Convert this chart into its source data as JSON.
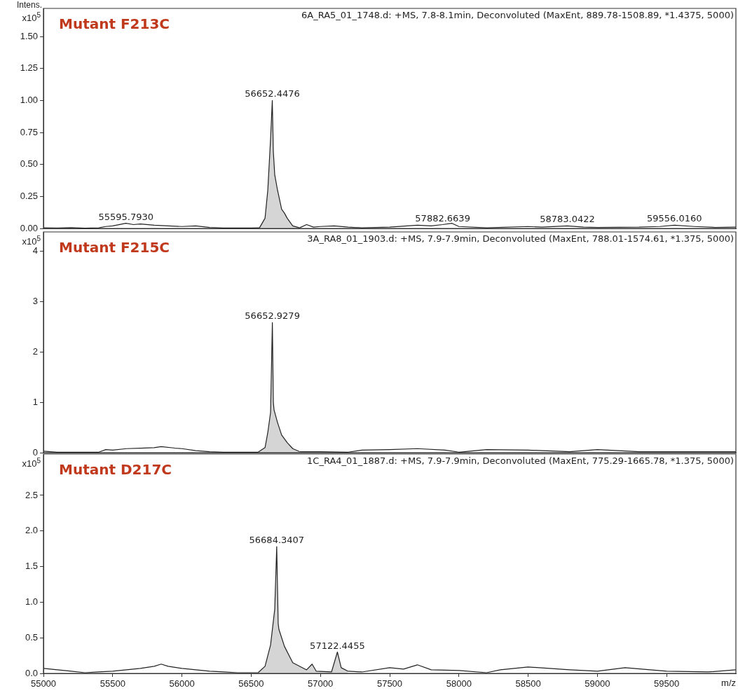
{
  "chart_data": [
    {
      "type": "line",
      "title": "Mutant F213C",
      "subtitle": "6A_RA5_01_1748.d: +MS, 7.8-8.1min, Deconvoluted (MaxEnt, 889.78-1508.89, *1.4375, 5000)",
      "ylabel": "x10$^{5}$",
      "xlim": [
        55000,
        60000
      ],
      "xticks": [
        55000,
        55500,
        56000,
        56500,
        57000,
        57500,
        58000,
        58500,
        59000,
        59500
      ],
      "ylim": [
        0,
        1.72
      ],
      "yticks": [
        {
          "value": 0,
          "label": "0.00"
        },
        {
          "value": 0.25,
          "label": "0.25"
        },
        {
          "value": 0.5,
          "label": "0.50"
        },
        {
          "value": 0.75,
          "label": "0.75"
        },
        {
          "value": 1,
          "label": "1.00"
        },
        {
          "value": 1.25,
          "label": "1.25"
        },
        {
          "value": 1.5,
          "label": "1.50"
        }
      ],
      "tick_labels": "y",
      "annotations": [
        "Intens.",
        {
          "text": "55595.7930",
          "x": 55595.793,
          "y": 0.04
        },
        {
          "text": "56652.4476",
          "x": 56652.4476,
          "y": 1.0
        },
        {
          "text": "57882.6639",
          "x": 57882.6639,
          "y": 0.03
        },
        {
          "text": "58783.0422",
          "x": 58783.0422,
          "y": 0.02
        },
        {
          "text": "59556.0160",
          "x": 59556.016,
          "y": 0.025
        }
      ],
      "series": [
        {
          "type": "line",
          "color": "#222222",
          "x": [
            55000,
            55100,
            55200,
            55300,
            55400,
            55450,
            55500,
            55595.793,
            55650,
            55700,
            55800,
            55900,
            56000,
            56100,
            56200,
            56300,
            56400,
            56500,
            56560
          ],
          "values": [
            0.005,
            0.004,
            0.006,
            0.002,
            0.005,
            0.015,
            0.02,
            0.04,
            0.03,
            0.035,
            0.025,
            0.02,
            0.015,
            0.02,
            0.008,
            0.003,
            0.003,
            0.003,
            0.005
          ]
        },
        {
          "type": "area",
          "color": "#222222",
          "x": [
            56560,
            56600,
            56620,
            56640,
            56652.4476,
            56660,
            56670,
            56690,
            56720,
            56740,
            56760,
            56800,
            56850
          ],
          "values": [
            0.005,
            0.08,
            0.3,
            0.7,
            1.0,
            0.6,
            0.42,
            0.3,
            0.15,
            0.12,
            0.08,
            0.02,
            0.005
          ]
        },
        {
          "type": "line",
          "color": "#222222",
          "x": [
            56850,
            56900,
            56950,
            57000,
            57100,
            57200,
            57300,
            57500,
            57700,
            57800,
            57882.6639,
            57950,
            58000,
            58200,
            58500,
            58600,
            58783.0422,
            58900,
            59000,
            59300,
            59450,
            59556.016,
            59700,
            59850,
            60000
          ],
          "values": [
            0.005,
            0.03,
            0.01,
            0.015,
            0.02,
            0.01,
            0.005,
            0.01,
            0.025,
            0.02,
            0.03,
            0.04,
            0.015,
            0.005,
            0.015,
            0.01,
            0.02,
            0.01,
            0.008,
            0.01,
            0.015,
            0.025,
            0.015,
            0.008,
            0.01
          ]
        }
      ]
    },
    {
      "type": "line",
      "title": "Mutant F215C",
      "subtitle": "3A_RA8_01_1903.d: +MS, 7.9-7.9min, Deconvoluted (MaxEnt, 788.01-1574.61, *1.375, 5000)",
      "ylabel": "x10$^{5}$",
      "xlim": [
        55000,
        60000
      ],
      "xticks": [
        55000,
        55500,
        56000,
        56500,
        57000,
        57500,
        58000,
        58500,
        59000,
        59500
      ],
      "ylim": [
        0,
        4.38
      ],
      "yticks": [
        0,
        1,
        2,
        3,
        4
      ],
      "tick_labels": "y",
      "annotations": [
        {
          "text": "56652.9279",
          "x": 56652.9279,
          "y": 2.58
        }
      ],
      "series": [
        {
          "type": "line",
          "color": "#222222",
          "x": [
            55000,
            55100,
            55200,
            55400,
            55450,
            55500,
            55600,
            55700,
            55800,
            55850,
            55950,
            56000,
            56100,
            56200,
            56300,
            56400,
            56550
          ],
          "values": [
            0.03,
            0.01,
            0.01,
            0.01,
            0.06,
            0.05,
            0.08,
            0.09,
            0.1,
            0.12,
            0.09,
            0.08,
            0.04,
            0.02,
            0.01,
            0.01,
            0.01
          ]
        },
        {
          "type": "area",
          "color": "#222222",
          "x": [
            56550,
            56600,
            56620,
            56640,
            56652.9279,
            56660,
            56665,
            56690,
            56720,
            56760,
            56800,
            56850
          ],
          "values": [
            0.01,
            0.1,
            0.4,
            0.8,
            2.58,
            1.0,
            0.85,
            0.6,
            0.35,
            0.2,
            0.08,
            0.02
          ]
        },
        {
          "type": "line",
          "color": "#222222",
          "x": [
            56850,
            57000,
            57200,
            57300,
            57500,
            57700,
            57900,
            58000,
            58200,
            58500,
            58800,
            59000,
            59300,
            59700,
            60000
          ],
          "values": [
            0.02,
            0.02,
            0.01,
            0.05,
            0.06,
            0.08,
            0.05,
            0.01,
            0.06,
            0.05,
            0.02,
            0.06,
            0.02,
            0.02,
            0.02
          ]
        }
      ]
    },
    {
      "type": "line",
      "title": "Mutant D217C",
      "subtitle": "1C_RA4_01_1887.d: +MS, 7.9-7.9min, Deconvoluted (MaxEnt, 775.29-1665.78, *1.375, 5000)",
      "ylabel": "x10$^{5}$",
      "xlabel": "m/z",
      "xlim": [
        55000,
        60000
      ],
      "xticks": [
        55000,
        55500,
        56000,
        56500,
        57000,
        57500,
        58000,
        58500,
        59000,
        59500
      ],
      "ylim": [
        0,
        3.08
      ],
      "yticks": [
        {
          "value": 0,
          "label": "0.0"
        },
        {
          "value": 0.5,
          "label": "0.5"
        },
        {
          "value": 1,
          "label": "1.0"
        },
        {
          "value": 1.5,
          "label": "1.5"
        },
        {
          "value": 2,
          "label": "2.0"
        },
        {
          "value": 2.5,
          "label": "2.5"
        }
      ],
      "annotations": [
        {
          "text": "56684.3407",
          "x": 56684.3407,
          "y": 1.78
        },
        {
          "text": "57122.4455",
          "x": 57122.4455,
          "y": 0.3
        }
      ],
      "series": [
        {
          "type": "line",
          "color": "#222222",
          "x": [
            55000,
            55100,
            55200,
            55300,
            55400,
            55500,
            55600,
            55700,
            55800,
            55850,
            55900,
            56000,
            56100,
            56200,
            56300,
            56400,
            56550
          ],
          "values": [
            0.07,
            0.05,
            0.03,
            0.01,
            0.02,
            0.03,
            0.05,
            0.07,
            0.1,
            0.13,
            0.1,
            0.07,
            0.05,
            0.03,
            0.02,
            0.01,
            0.01
          ]
        },
        {
          "type": "area",
          "color": "#222222",
          "x": [
            56550,
            56600,
            56640,
            56670,
            56684.3407,
            56695,
            56700,
            56740,
            56800,
            56900,
            56940,
            56970,
            57080,
            57122.4455,
            57150,
            57200
          ],
          "values": [
            0.01,
            0.1,
            0.4,
            0.9,
            1.78,
            0.7,
            0.62,
            0.38,
            0.15,
            0.05,
            0.13,
            0.03,
            0.02,
            0.3,
            0.08,
            0.03
          ]
        },
        {
          "type": "line",
          "color": "#222222",
          "x": [
            57200,
            57300,
            57500,
            57600,
            57700,
            57800,
            58000,
            58200,
            58300,
            58500,
            58800,
            59000,
            59200,
            59500,
            59800,
            60000
          ],
          "values": [
            0.03,
            0.02,
            0.08,
            0.06,
            0.12,
            0.05,
            0.04,
            0.01,
            0.05,
            0.09,
            0.05,
            0.03,
            0.08,
            0.03,
            0.02,
            0.05
          ]
        }
      ]
    }
  ]
}
